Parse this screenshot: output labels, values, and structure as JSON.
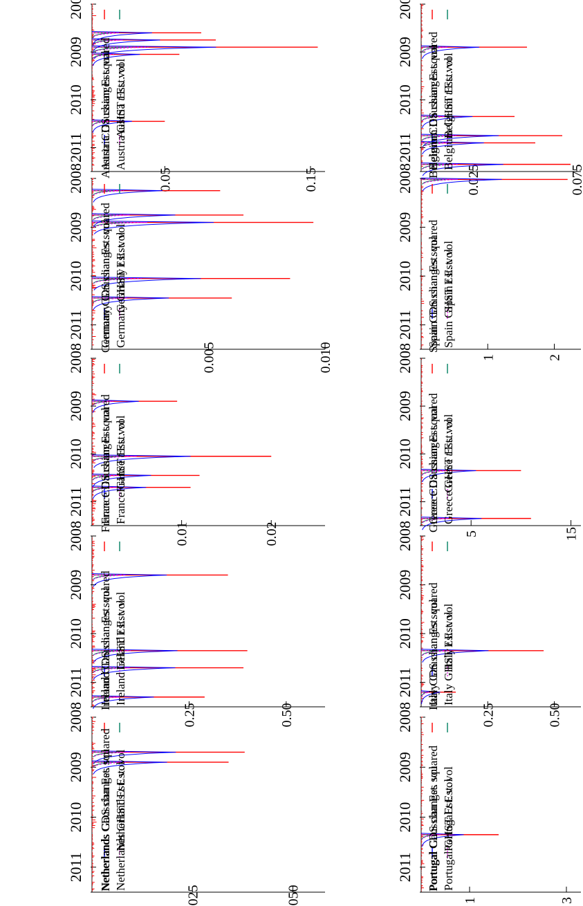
{
  "x_ticks": [
    "2008",
    "2009",
    "2010",
    "2011"
  ],
  "colors": {
    "cds": "#ff0000",
    "t": "#008060",
    "gaussian": "#0000ff",
    "ghst": "#e000e0"
  },
  "chart_data": [
    {
      "type": "line",
      "country": "Austria",
      "ylim": [
        0,
        0.16
      ],
      "ticks": [
        "0.15",
        "0.05"
      ],
      "tick_values": [
        0.15,
        0.05
      ],
      "legend": {
        "cds": "Austria CDS changes squared",
        "t_pre": "Austria ",
        "t_post": " Est. vol",
        "gaussian": "Austria Gaussian Est. vol",
        "ghst": "Austria GHST Est. vol"
      },
      "spikes": [
        {
          "x": 2008.9,
          "y": 0.155
        },
        {
          "x": 2008.75,
          "y": 0.085
        },
        {
          "x": 2008.6,
          "y": 0.075
        },
        {
          "x": 2010.45,
          "y": 0.05
        },
        {
          "x": 2009.05,
          "y": 0.06
        }
      ]
    },
    {
      "type": "line",
      "country": "Belgium",
      "ylim": [
        0,
        0.077
      ],
      "ticks": [
        "0.075",
        "0.025"
      ],
      "tick_values": [
        0.075,
        0.025
      ],
      "legend": {
        "cds": "Belgium CDS changes squared",
        "t_pre": "Belgium ",
        "t_post": " Est. vol",
        "gaussian": "Belgium Gaussian Est. vol",
        "ghst": "Belgium GHST Est. vol"
      },
      "spikes": [
        {
          "x": 2008.9,
          "y": 0.051
        },
        {
          "x": 2010.35,
          "y": 0.045
        },
        {
          "x": 2010.75,
          "y": 0.068
        },
        {
          "x": 2010.9,
          "y": 0.055
        },
        {
          "x": 2011.35,
          "y": 0.072
        }
      ]
    },
    {
      "type": "line",
      "country": "Germany",
      "ylim": [
        0,
        0.01
      ],
      "ticks": [
        "0.010",
        "0.005"
      ],
      "tick_values": [
        0.01,
        0.005
      ],
      "legend": {
        "cds": "Germany CDS changes squared",
        "t_pre": "Germany ",
        "t_post": " Est. vol",
        "gaussian": "Germany Gaussian Est. vol",
        "ghst": "Germany GHST Est. vol"
      },
      "spikes": [
        {
          "x": 2008.25,
          "y": 0.0055
        },
        {
          "x": 2008.9,
          "y": 0.0095
        },
        {
          "x": 2008.75,
          "y": 0.0065
        },
        {
          "x": 2010.05,
          "y": 0.0085
        },
        {
          "x": 2010.45,
          "y": 0.006
        }
      ]
    },
    {
      "type": "line",
      "country": "Spain",
      "ylim": [
        0,
        2.4
      ],
      "ticks": [
        "2",
        "1"
      ],
      "tick_values": [
        2,
        1
      ],
      "legend": {
        "cds": "Spain CDS changes squared",
        "t_pre": "Spain ",
        "t_post": " Est. vol",
        "gaussian": "Spain Gaussian Est. vol",
        "ghst": "Spain GHST Est. vol"
      },
      "spikes": [
        {
          "x": 2008.02,
          "y": 2.2
        }
      ]
    },
    {
      "type": "line",
      "country": "France",
      "ylim": [
        0,
        0.026
      ],
      "ticks": [
        "0.02",
        "0.01"
      ],
      "tick_values": [
        0.02,
        0.01
      ],
      "legend": {
        "cds": "France CDS changes squared",
        "t_pre": "France ",
        "t_post": " Est. vol",
        "gaussian": "France Gaussian Est. vol",
        "ghst": "France GHST Est. vol"
      },
      "spikes": [
        {
          "x": 2010.05,
          "y": 0.02
        },
        {
          "x": 2010.45,
          "y": 0.012
        },
        {
          "x": 2010.7,
          "y": 0.011
        },
        {
          "x": 2008.9,
          "y": 0.0095
        }
      ]
    },
    {
      "type": "line",
      "country": "Greece",
      "ylim": [
        0,
        16
      ],
      "ticks": [
        "15",
        "5"
      ],
      "tick_values": [
        15,
        5
      ],
      "legend": {
        "cds": "Greece CDS changes squared",
        "t_pre": "Greece ",
        "t_post": " Est. vol",
        "gaussian": "Greece Gaussian Est. vol",
        "ghst": "Greece GHST Est. vol"
      },
      "spikes": [
        {
          "x": 2010.35,
          "y": 10
        },
        {
          "x": 2011.35,
          "y": 11
        }
      ]
    },
    {
      "type": "line",
      "country": "Ireland",
      "ylim": [
        0,
        0.6
      ],
      "ticks": [
        "0.50",
        "0.25"
      ],
      "tick_values": [
        0.5,
        0.25
      ],
      "legend": {
        "cds": "Ireland CDS changes squared",
        "t_pre": "Ireland ",
        "t_post": " Est. vol",
        "gaussian": "Ireland Gaussian Est. vol",
        "ghst": "Ireland GHST Est. vol"
      },
      "spikes": [
        {
          "x": 2008.8,
          "y": 0.35
        },
        {
          "x": 2010.35,
          "y": 0.4
        },
        {
          "x": 2010.7,
          "y": 0.39
        },
        {
          "x": 2011.3,
          "y": 0.29
        }
      ]
    },
    {
      "type": "line",
      "country": "Italy",
      "ylim": [
        0,
        0.6
      ],
      "ticks": [
        "0.50",
        "0.25"
      ],
      "tick_values": [
        0.5,
        0.25
      ],
      "legend": {
        "cds": "Italy CDS changes squared",
        "t_pre": "Italy ",
        "t_post": " Est. vol",
        "gaussian": "Italy Gaussian Est. vol",
        "ghst": "Italy GHST Est. vol"
      },
      "spikes": [
        {
          "x": 2010.35,
          "y": 0.46
        },
        {
          "x": 2011.2,
          "y": 0.13
        }
      ]
    },
    {
      "type": "line",
      "country": "Netherlands",
      "ylim": [
        0,
        0.058
      ],
      "ticks": [
        "0.050",
        "0.025"
      ],
      "tick_values": [
        0.05,
        0.025
      ],
      "legend": {
        "cds": "Netherlands CDS changes squared",
        "t_pre": "Netherlands ",
        "t_post": " Est. vol",
        "gaussian": "Netherlands Gaussian Est. vol",
        "ghst": "Netherlands GHST Est. vol"
      },
      "spikes": [
        {
          "x": 2008.7,
          "y": 0.038
        },
        {
          "x": 2008.9,
          "y": 0.034
        }
      ]
    },
    {
      "type": "line",
      "country": "Portugal",
      "ylim": [
        0,
        3.3
      ],
      "ticks": [
        "3",
        "1"
      ],
      "tick_values": [
        3,
        1
      ],
      "legend": {
        "cds": "Portugal CDS changes squared",
        "t_pre": "Portugal ",
        "t_post": " Est. vol",
        "gaussian": "Portugal Gaussian Est. vol",
        "ghst": "Portugal GHST Est. vol"
      },
      "spikes": [
        {
          "x": 2010.35,
          "y": 1.6
        }
      ]
    }
  ]
}
